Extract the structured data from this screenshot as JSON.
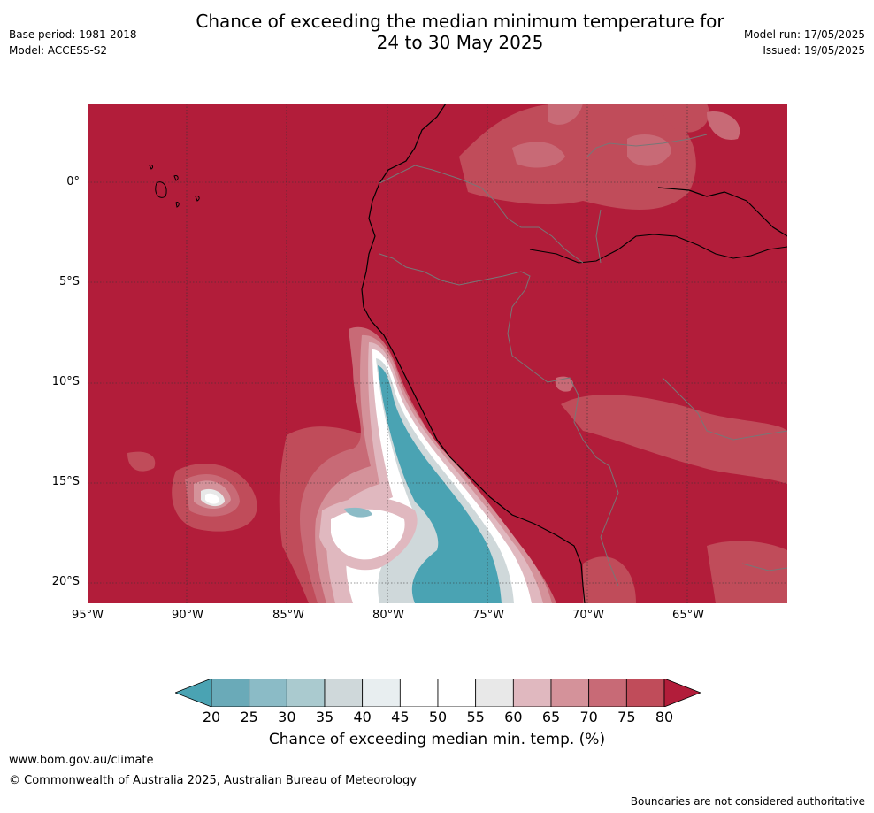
{
  "title_line1": "Chance of exceeding the median minimum temperature for",
  "title_line2": "24 to 30 May 2025",
  "meta_left": {
    "base_period": "Base period: 1981-2018",
    "model": "Model: ACCESS-S2"
  },
  "meta_right": {
    "model_run": "Model run: 17/05/2025",
    "issued": "Issued: 19/05/2025"
  },
  "lat_labels": [
    "0°",
    "5°S",
    "10°S",
    "15°S",
    "20°S"
  ],
  "lon_labels": [
    "95°W",
    "90°W",
    "85°W",
    "80°W",
    "75°W",
    "70°W",
    "65°W"
  ],
  "colorbar": {
    "ticks": [
      "20",
      "25",
      "30",
      "35",
      "40",
      "45",
      "50",
      "55",
      "60",
      "65",
      "70",
      "75",
      "80"
    ],
    "label": "Chance of exceeding median min. temp. (%)",
    "colors": [
      "#4aa3b3",
      "#6aaab8",
      "#8bbbc6",
      "#aacacf",
      "#cfd8da",
      "#e8eef0",
      "#ffffff",
      "#ffffff",
      "#e8e8e8",
      "#e0b8bf",
      "#d4929a",
      "#c86a76",
      "#c04c5a",
      "#b21d3a"
    ]
  },
  "footer": {
    "website": "www.bom.gov.au/climate",
    "copyright": "© Commonwealth of Australia 2025, Australian Bureau of Meteorology",
    "disclaimer": "Boundaries are not considered authoritative"
  }
}
